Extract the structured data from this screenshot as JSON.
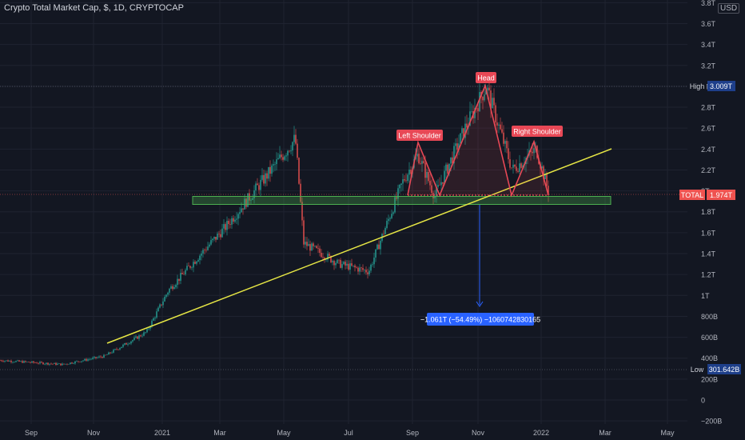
{
  "header": {
    "title": "Crypto Total Market Cap, $, 1D, CRYPTOCAP",
    "currency": "USD"
  },
  "colors": {
    "background": "#131722",
    "up": "#26a69a",
    "down": "#ef5350",
    "trendline": "#e6e645",
    "pattern": "#e84856",
    "zone": "#4caf50",
    "measure": "#2962ff"
  },
  "y_axis": {
    "ticks": [
      "3.8T",
      "3.6T",
      "3.4T",
      "3.2T",
      "3T",
      "2.8T",
      "2.6T",
      "2.4T",
      "2.2T",
      "2T",
      "1.8T",
      "1.6T",
      "1.4T",
      "1.2T",
      "1T",
      "800B",
      "600B",
      "400B",
      "200B",
      "0",
      "−200B"
    ]
  },
  "x_axis": {
    "ticks": [
      "Sep",
      "Nov",
      "2021",
      "Mar",
      "May",
      "Jul",
      "Sep",
      "Nov",
      "2022",
      "Mar",
      "May"
    ]
  },
  "price_labels": {
    "high_label": "High",
    "high_value": "3.009T",
    "low_label": "Low",
    "low_value": "301.642B",
    "last_label": "TOTAL",
    "last_value": "1.974T"
  },
  "annotations": {
    "left_shoulder": "Left Shoulder",
    "head": "Head",
    "right_shoulder": "Right Shoulder",
    "measure": "−1.061T (−54.49%) −1060742830165"
  },
  "chart_data": {
    "type": "candlestick",
    "title": "Crypto Total Market Cap, $, 1D, CRYPTOCAP",
    "y_unit": "USD",
    "ylim": [
      -200000000000,
      3800000000000
    ],
    "x_range": [
      "2020-08",
      "2022-05"
    ],
    "high": 3009000000000,
    "low": 301642000000,
    "last": 1974000000000,
    "trend": [
      {
        "date": "2020-08-01",
        "close": 380000000000
      },
      {
        "date": "2020-10-01",
        "close": 340000000000
      },
      {
        "date": "2020-11-10",
        "close": 420000000000
      },
      {
        "date": "2020-12-20",
        "close": 650000000000
      },
      {
        "date": "2021-01-10",
        "close": 1050000000000
      },
      {
        "date": "2021-02-10",
        "close": 1400000000000
      },
      {
        "date": "2021-03-05",
        "close": 1650000000000
      },
      {
        "date": "2021-04-14",
        "close": 2150000000000
      },
      {
        "date": "2021-05-11",
        "close": 2500000000000
      },
      {
        "date": "2021-05-19",
        "close": 1500000000000
      },
      {
        "date": "2021-06-22",
        "close": 1300000000000
      },
      {
        "date": "2021-07-20",
        "close": 1230000000000
      },
      {
        "date": "2021-08-22",
        "close": 2100000000000
      },
      {
        "date": "2021-09-05",
        "close": 2350000000000
      },
      {
        "date": "2021-09-21",
        "close": 1950000000000
      },
      {
        "date": "2021-10-20",
        "close": 2600000000000
      },
      {
        "date": "2021-11-09",
        "close": 3000000000000
      },
      {
        "date": "2021-12-04",
        "close": 2200000000000
      },
      {
        "date": "2021-12-27",
        "close": 2400000000000
      },
      {
        "date": "2022-01-08",
        "close": 1974000000000
      }
    ],
    "pattern": "head and shoulders",
    "support_zone": [
      1880000000000,
      1960000000000
    ],
    "measured_move": -1060742830165,
    "measured_move_pct": -54.49
  }
}
